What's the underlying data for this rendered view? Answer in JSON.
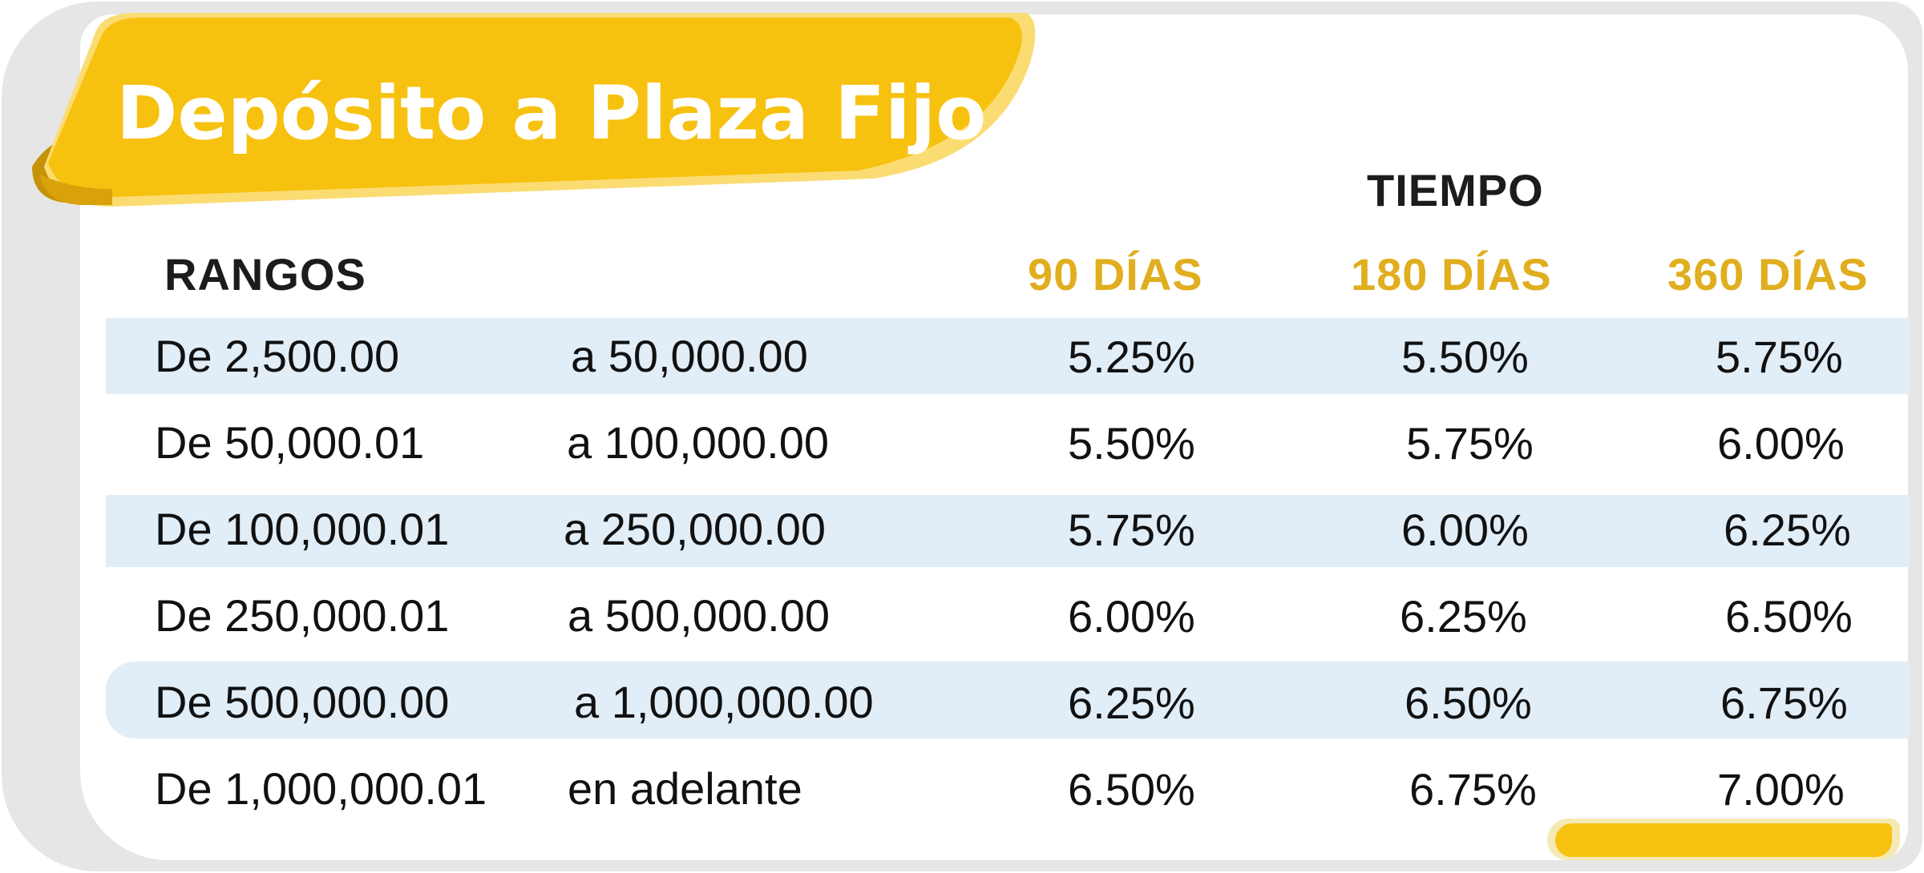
{
  "title": "Depósito a Plaza Fijo",
  "header": {
    "group_label": "TIEMPO",
    "range_label": "RANGOS",
    "terms": [
      "90 DÍAS",
      "180 DÍAS",
      "360 DÍAS"
    ]
  },
  "rows": [
    {
      "from": "De 2,500.00",
      "to": "a  50,000.00",
      "r90": "5.25%",
      "r180": "5.50%",
      "r360": "5.75%"
    },
    {
      "from": "De 50,000.01",
      "to": "a  100,000.00",
      "r90": "5.50%",
      "r180": "5.75%",
      "r360": "6.00%"
    },
    {
      "from": "De 100,000.01",
      "to": "a 250,000.00",
      "r90": "5.75%",
      "r180": "6.00%",
      "r360": "6.25%"
    },
    {
      "from": "De 250,000.01",
      "to": "a 500,000.00",
      "r90": "6.00%",
      "r180": "6.25%",
      "r360": "6.50%"
    },
    {
      "from": "De 500,000.00",
      "to": "a 1,000,000.00",
      "r90": "6.25%",
      "r180": "6.50%",
      "r360": "6.75%"
    },
    {
      "from": "De 1,000,000.01",
      "to": "en adelante",
      "r90": "6.50%",
      "r180": "6.75%",
      "r360": "7.00%"
    }
  ],
  "colors": {
    "accent_yellow": "#f7c10f",
    "header_gold": "#e0ae1e",
    "stripe_blue": "#e1edf7",
    "text_dark": "#1c1c1c"
  }
}
